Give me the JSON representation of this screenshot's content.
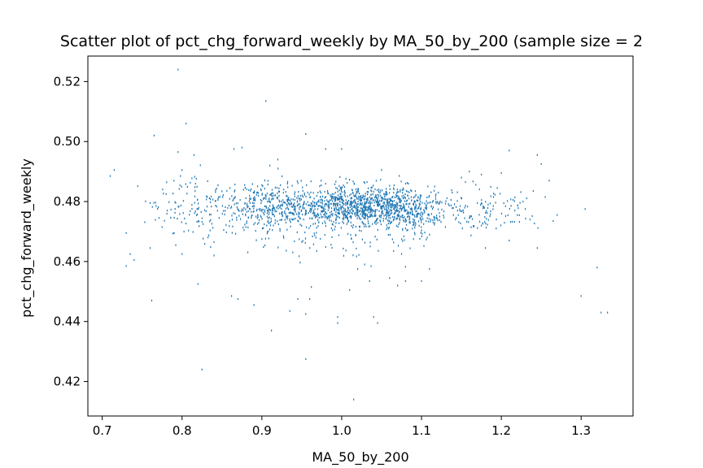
{
  "chart_data": {
    "type": "scatter",
    "title": "Scatter plot of pct_chg_forward_weekly by MA_50_by_200 (sample size = 2",
    "xlabel": "MA_50_by_200",
    "ylabel": "pct_chg_forward_weekly",
    "xlim": [
      0.682,
      1.365
    ],
    "ylim": [
      0.4085,
      0.5285
    ],
    "xticks": [
      0.7,
      0.8,
      0.9,
      1.0,
      1.1,
      1.2,
      1.3
    ],
    "xtick_labels": [
      "0.7",
      "0.8",
      "0.9",
      "1.0",
      "1.1",
      "1.2",
      "1.3"
    ],
    "yticks": [
      0.42,
      0.44,
      0.46,
      0.48,
      0.5,
      0.52
    ],
    "ytick_labels": [
      "0.42",
      "0.44",
      "0.46",
      "0.48",
      "0.50",
      "0.52"
    ],
    "grid": false,
    "marker_color": "#1f77b4",
    "series": [
      {
        "points": [
          [
            0.795,
            0.524
          ],
          [
            0.805,
            0.506
          ],
          [
            0.905,
            0.5135
          ],
          [
            0.765,
            0.502
          ],
          [
            0.955,
            0.5025
          ],
          [
            0.795,
            0.4965
          ],
          [
            0.815,
            0.4955
          ],
          [
            0.865,
            0.4975
          ],
          [
            0.875,
            0.498
          ],
          [
            0.91,
            0.492
          ],
          [
            0.92,
            0.494
          ],
          [
            0.98,
            0.4975
          ],
          [
            1.0,
            0.4975
          ],
          [
            1.05,
            0.4905
          ],
          [
            1.21,
            0.497
          ],
          [
            1.245,
            0.4955
          ],
          [
            1.26,
            0.487
          ],
          [
            1.25,
            0.4925
          ],
          [
            1.2,
            0.4895
          ],
          [
            1.16,
            0.49
          ],
          [
            1.15,
            0.488
          ],
          [
            1.155,
            0.4865
          ],
          [
            1.175,
            0.489
          ],
          [
            1.24,
            0.4835
          ],
          [
            1.27,
            0.4755
          ],
          [
            1.305,
            0.4775
          ],
          [
            1.3,
            0.4485
          ],
          [
            1.32,
            0.458
          ],
          [
            1.325,
            0.443
          ],
          [
            1.333,
            0.443
          ],
          [
            1.245,
            0.4645
          ],
          [
            1.18,
            0.4645
          ],
          [
            1.175,
            0.472
          ],
          [
            1.21,
            0.467
          ],
          [
            1.17,
            0.4795
          ],
          [
            0.715,
            0.4905
          ],
          [
            0.71,
            0.4885
          ],
          [
            0.73,
            0.4695
          ],
          [
            0.735,
            0.4625
          ],
          [
            0.73,
            0.4585
          ],
          [
            0.76,
            0.4645
          ],
          [
            0.762,
            0.447
          ],
          [
            0.74,
            0.4605
          ],
          [
            0.82,
            0.4525
          ],
          [
            0.825,
            0.424
          ],
          [
            0.84,
            0.4665
          ],
          [
            0.862,
            0.4485
          ],
          [
            0.87,
            0.4475
          ],
          [
            0.89,
            0.4455
          ],
          [
            0.9,
            0.4675
          ],
          [
            0.912,
            0.437
          ],
          [
            0.935,
            0.4435
          ],
          [
            0.945,
            0.4475
          ],
          [
            0.955,
            0.4425
          ],
          [
            0.955,
            0.4275
          ],
          [
            0.962,
            0.4515
          ],
          [
            0.96,
            0.4475
          ],
          [
            0.995,
            0.4415
          ],
          [
            0.995,
            0.4395
          ],
          [
            1.015,
            0.414
          ],
          [
            1.01,
            0.4505
          ],
          [
            1.02,
            0.4575
          ],
          [
            1.035,
            0.4535
          ],
          [
            1.04,
            0.4415
          ],
          [
            1.045,
            0.4395
          ],
          [
            1.06,
            0.4545
          ],
          [
            1.07,
            0.452
          ],
          [
            1.08,
            0.4535
          ],
          [
            1.1,
            0.4535
          ],
          [
            1.11,
            0.4575
          ],
          [
            1.075,
            0.4625
          ],
          [
            0.84,
            0.462
          ],
          [
            0.8,
            0.4625
          ],
          [
            0.79,
            0.4695
          ],
          [
            0.775,
            0.4715
          ],
          [
            0.76,
            0.4795
          ],
          [
            0.78,
            0.4825
          ],
          [
            0.8,
            0.4905
          ],
          [
            0.82,
            0.4775
          ],
          [
            0.845,
            0.4805
          ],
          [
            0.86,
            0.4845
          ],
          [
            0.88,
            0.4715
          ],
          [
            0.9,
            0.4855
          ],
          [
            0.95,
            0.4665
          ],
          [
            0.96,
            0.4645
          ],
          [
            1.065,
            0.4635
          ],
          [
            1.09,
            0.4675
          ],
          [
            1.13,
            0.4715
          ],
          [
            1.14,
            0.4755
          ],
          [
            1.16,
            0.4745
          ],
          [
            1.19,
            0.4785
          ],
          [
            1.22,
            0.4755
          ],
          [
            1.23,
            0.4775
          ],
          [
            1.255,
            0.4815
          ],
          [
            1.265,
            0.4735
          ]
        ]
      }
    ]
  }
}
